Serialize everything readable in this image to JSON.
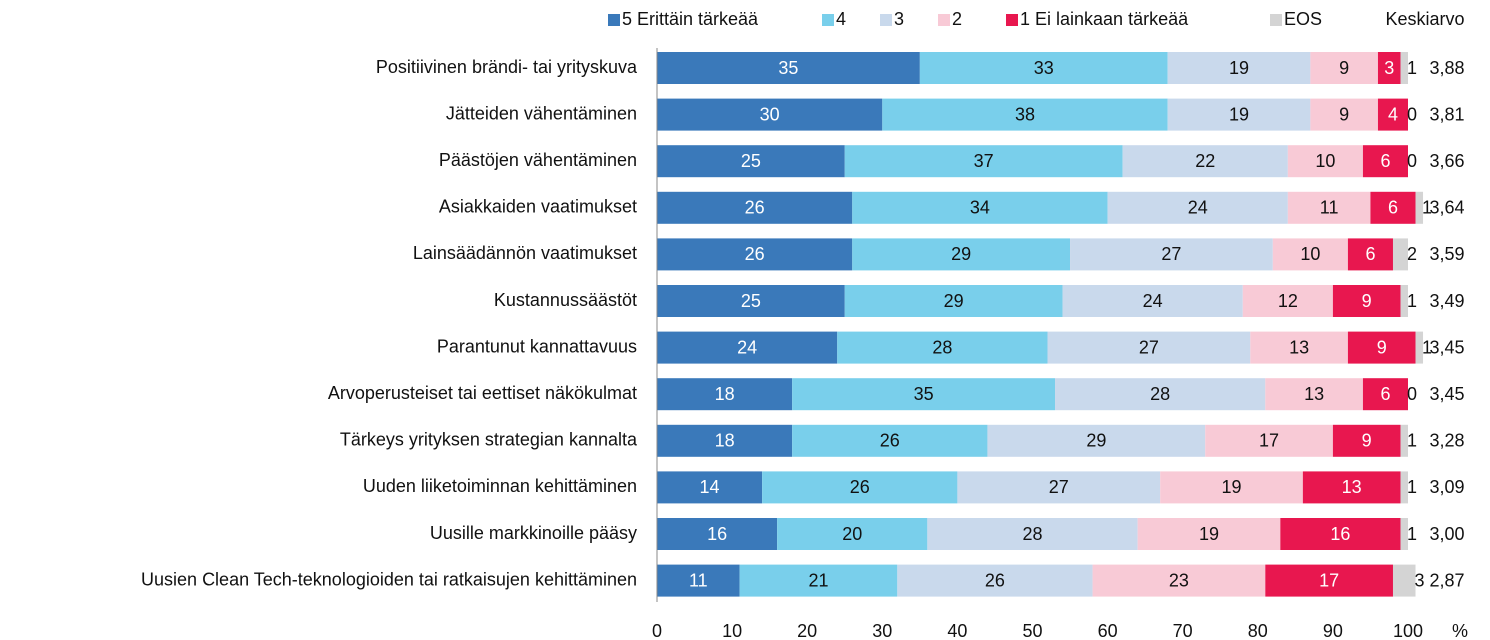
{
  "chart_data": {
    "type": "stacked_bar_horizontal",
    "categories": [
      "Positiivinen brändi- tai yrityskuva",
      "Jätteiden vähentäminen",
      "Päästöjen vähentäminen",
      "Asiakkaiden vaatimukset",
      "Lainsäädännön vaatimukset",
      "Kustannussäästöt",
      "Parantunut kannattavuus",
      "Arvoperusteiset tai eettiset näkökulmat",
      "Tärkeys yrityksen strategian kannalta",
      "Uuden liiketoiminnan kehittäminen",
      "Uusille markkinoille pääsy",
      "Uusien Clean Tech-teknologioiden tai ratkaisujen kehittäminen"
    ],
    "series": [
      {
        "name": "5 Erittäin tärkeää",
        "color": "#3a79ba",
        "values": [
          35,
          30,
          25,
          26,
          26,
          25,
          24,
          18,
          18,
          14,
          16,
          11
        ]
      },
      {
        "name": "4",
        "color": "#79cfeb",
        "values": [
          33,
          38,
          37,
          34,
          29,
          29,
          28,
          35,
          26,
          26,
          20,
          21
        ]
      },
      {
        "name": "3",
        "color": "#c9d9ec",
        "values": [
          19,
          19,
          22,
          24,
          27,
          24,
          27,
          28,
          29,
          27,
          28,
          26
        ]
      },
      {
        "name": "2",
        "color": "#f8cad6",
        "values": [
          9,
          9,
          10,
          11,
          10,
          12,
          13,
          13,
          17,
          19,
          19,
          23
        ]
      },
      {
        "name": "1 Ei lainkaan tärkeää",
        "color": "#e8174f",
        "values": [
          3,
          4,
          6,
          6,
          6,
          9,
          9,
          6,
          9,
          13,
          16,
          17
        ]
      },
      {
        "name": "EOS",
        "color": "#d4d4d4",
        "values": [
          1,
          0,
          0,
          1,
          2,
          1,
          1,
          0,
          1,
          1,
          1,
          3
        ]
      }
    ],
    "average": {
      "name": "Keskiarvo",
      "values": [
        3.88,
        3.81,
        3.66,
        3.64,
        3.59,
        3.49,
        3.45,
        3.45,
        3.28,
        3.09,
        3.0,
        2.87
      ],
      "value_labels": [
        "3,88",
        "3,81",
        "3,66",
        "3,64",
        "3,59",
        "3,49",
        "3,45",
        "3,45",
        "3,28",
        "3,09",
        "3,00",
        "2,87"
      ]
    },
    "x_label": "%",
    "xlim": [
      0,
      100
    ],
    "xticks": [
      0,
      10,
      20,
      30,
      40,
      50,
      60,
      70,
      80,
      90,
      100
    ]
  }
}
